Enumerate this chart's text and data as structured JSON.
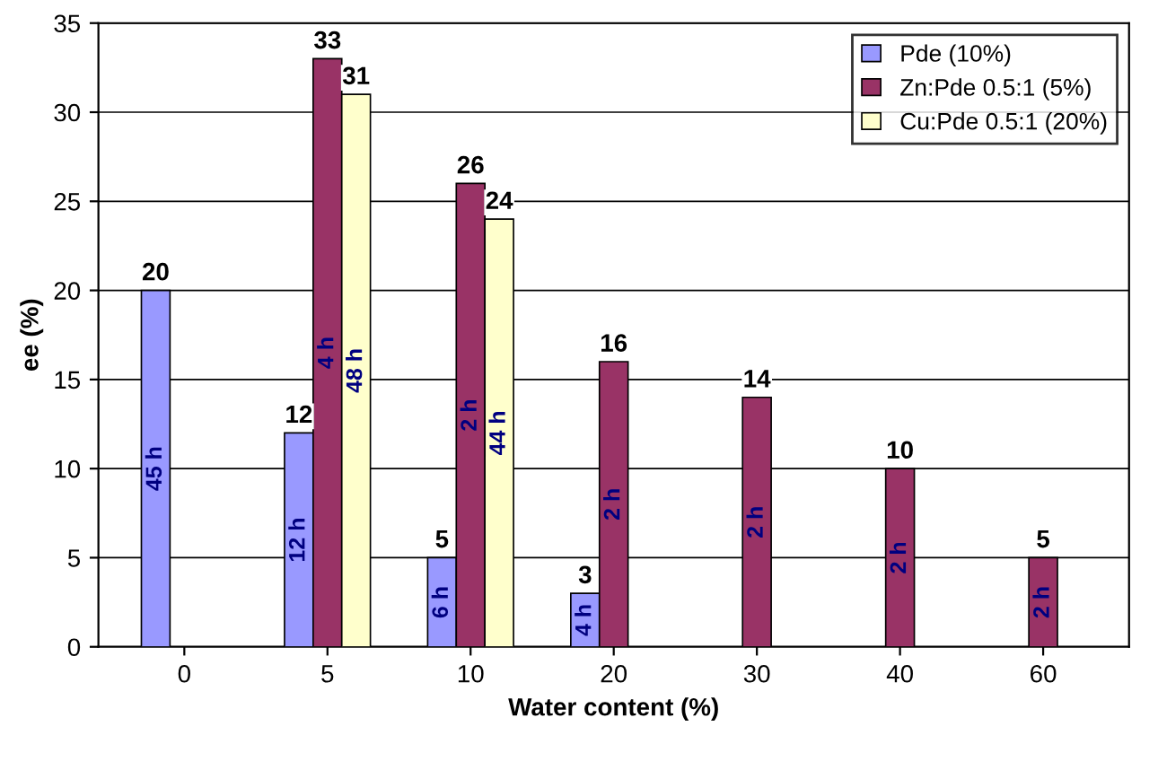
{
  "chart_data": {
    "type": "bar",
    "xlabel": "Water content (%)",
    "ylabel": "ee (%)",
    "categories": [
      "0",
      "5",
      "10",
      "20",
      "30",
      "40",
      "60"
    ],
    "series": [
      {
        "name": "Pde (10%)",
        "color": "#9999ff",
        "values": [
          20,
          12,
          5,
          3,
          null,
          null,
          null
        ]
      },
      {
        "name": "Zn:Pde 0.5:1 (5%)",
        "color": "#993366",
        "values": [
          null,
          33,
          26,
          16,
          14,
          10,
          5
        ]
      },
      {
        "name": "Cu:Pde 0.5:1 (20%)",
        "color": "#ffffcc",
        "values": [
          null,
          31,
          24,
          null,
          null,
          null,
          null
        ]
      }
    ],
    "annotations": [
      "45 h",
      "12 h",
      "6 h",
      "4 h",
      "4 h",
      "2 h",
      "2 h",
      "2 h",
      "2 h",
      "2 h",
      "48 h",
      "44 h"
    ],
    "ylim": [
      0,
      35
    ],
    "yticks": [
      0,
      5,
      10,
      15,
      20,
      25,
      30,
      35
    ],
    "grid": "y",
    "legend": "top right",
    "data_labels": true
  }
}
